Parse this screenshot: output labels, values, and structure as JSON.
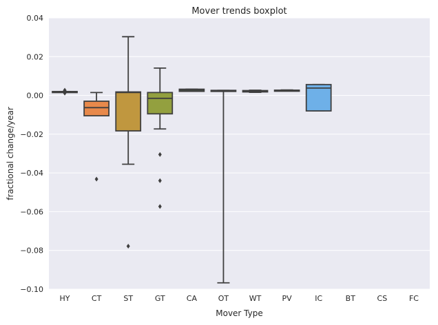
{
  "chart_data": {
    "type": "boxplot",
    "title": "Mover trends boxplot",
    "xlabel": "Mover Type",
    "ylabel": "fractional change/year",
    "ylim": [
      -0.1,
      0.04
    ],
    "yticks": [
      0.04,
      0.02,
      0.0,
      -0.02,
      -0.04,
      -0.06,
      -0.08,
      -0.1
    ],
    "ytick_labels": [
      "0.04",
      "0.02",
      "0.00",
      "−0.02",
      "−0.04",
      "−0.06",
      "−0.08",
      "−0.10"
    ],
    "grid": true,
    "background": "#eaeaf2",
    "categories": [
      "HY",
      "CT",
      "ST",
      "GT",
      "CA",
      "OT",
      "WT",
      "PV",
      "IC",
      "BT",
      "CS",
      "FC"
    ],
    "boxes": [
      {
        "category": "HY",
        "color": "#4c72b0",
        "whisker_low": 0.0018,
        "q1": 0.0018,
        "median": 0.0019,
        "q3": 0.002,
        "whisker_high": 0.002,
        "outliers": [
          0.0012,
          0.0015,
          0.0024,
          0.0027
        ]
      },
      {
        "category": "CT",
        "color": "#e8894b",
        "whisker_low": -0.0105,
        "q1": -0.0105,
        "median": -0.0063,
        "q3": -0.003,
        "whisker_high": 0.0015,
        "outliers": [
          -0.0432
        ]
      },
      {
        "category": "ST",
        "color": "#c0973f",
        "whisker_low": -0.0355,
        "q1": -0.0183,
        "median": 0.0015,
        "q3": 0.0018,
        "whisker_high": 0.0303,
        "outliers": [
          -0.0778
        ]
      },
      {
        "category": "GT",
        "color": "#93a03f",
        "whisker_low": -0.0173,
        "q1": -0.0095,
        "median": -0.0015,
        "q3": 0.0015,
        "whisker_high": 0.0141,
        "outliers": [
          -0.0305,
          -0.044,
          -0.0573
        ]
      },
      {
        "category": "CA",
        "color": "#59a84f",
        "whisker_low": 0.0021,
        "q1": 0.0021,
        "median": 0.0027,
        "q3": 0.0032,
        "whisker_high": 0.0032,
        "outliers": []
      },
      {
        "category": "OT",
        "color": "#5cab8d",
        "whisker_low": -0.0967,
        "q1": 0.0024,
        "median": 0.0025,
        "q3": 0.0026,
        "whisker_high": 0.0026,
        "outliers": []
      },
      {
        "category": "WT",
        "color": "#5ba3b6",
        "whisker_low": 0.0016,
        "q1": 0.0018,
        "median": 0.0021,
        "q3": 0.0025,
        "whisker_high": 0.0027,
        "outliers": []
      },
      {
        "category": "PV",
        "color": "#62a7d0",
        "whisker_low": 0.0024,
        "q1": 0.0025,
        "median": 0.0026,
        "q3": 0.0027,
        "whisker_high": 0.0028,
        "outliers": []
      },
      {
        "category": "IC",
        "color": "#6eb0e8",
        "whisker_low": -0.008,
        "q1": -0.008,
        "median": 0.0038,
        "q3": 0.0056,
        "whisker_high": 0.0056,
        "outliers": []
      },
      {
        "category": "BT",
        "color": "#a3a3f0",
        "whisker_low": null,
        "q1": null,
        "median": null,
        "q3": null,
        "whisker_high": null,
        "outliers": []
      },
      {
        "category": "CS",
        "color": "#c49cf0",
        "whisker_low": null,
        "q1": null,
        "median": null,
        "q3": null,
        "whisker_high": null,
        "outliers": []
      },
      {
        "category": "FC",
        "color": "#e49ce6",
        "whisker_low": null,
        "q1": null,
        "median": null,
        "q3": null,
        "whisker_high": null,
        "outliers": []
      }
    ]
  },
  "colors": {
    "grid": "#ffffff",
    "stroke": "#3f3f3f",
    "text": "#262626"
  }
}
